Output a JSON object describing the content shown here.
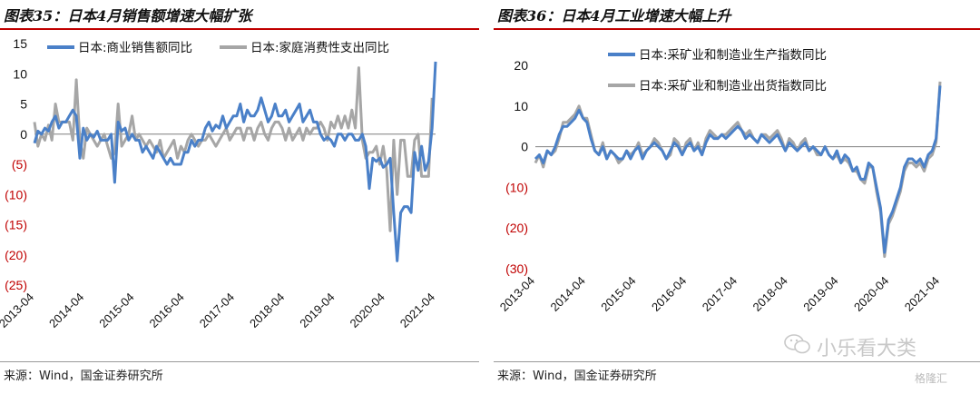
{
  "panels": [
    {
      "title": "图表35：日本4月销售额增速大幅扩张",
      "source": "来源：Wind，国金证券研究所"
    },
    {
      "title": "图表36：日本4月工业增速大幅上升",
      "source": "来源：Wind，国金证券研究所"
    }
  ],
  "watermark": {
    "text": "小乐看大类",
    "brand": "格隆汇"
  },
  "colors": {
    "blue": "#4a80c8",
    "gray": "#a6a6a6",
    "negative": "#c00000",
    "title_rule": "#c00000"
  },
  "chart_data": [
    {
      "type": "line",
      "ylim": [
        -25,
        15
      ],
      "yticks": [
        15,
        10,
        5,
        0,
        -5,
        -10,
        -15,
        -20,
        -25
      ],
      "ytick_labels": [
        "15",
        "10",
        "5",
        "0",
        "(5)",
        "(10)",
        "(15)",
        "(20)",
        "(25)"
      ],
      "xticks": [
        "2013-04",
        "2014-04",
        "2015-04",
        "2016-04",
        "2017-04",
        "2018-04",
        "2019-04",
        "2020-04",
        "2021-04"
      ],
      "x_start": "2013-04",
      "x_end": "2021-04",
      "legend_position": "top",
      "series": [
        {
          "name": "日本:商业销售额同比",
          "color": "blue",
          "values": [
            -1.5,
            0.5,
            0,
            1,
            0.5,
            2,
            3,
            1,
            2,
            2,
            3,
            4,
            3,
            -4,
            1,
            -1,
            0,
            -0.5,
            0.5,
            -1,
            -1,
            -1,
            0,
            -8,
            2,
            0.5,
            1,
            -1,
            0,
            -1,
            -1,
            -3,
            -2,
            -3,
            -4,
            -2,
            -3,
            -4,
            -5,
            -4,
            -5,
            -5,
            -5,
            -3,
            -3,
            -1,
            -2,
            -1,
            -1,
            1,
            2,
            0.5,
            1.5,
            1,
            3,
            1,
            2,
            3,
            3,
            5,
            2,
            4,
            3,
            3,
            4,
            6,
            4,
            2,
            3,
            5,
            3,
            3,
            4,
            2,
            3,
            4,
            5,
            2,
            3,
            4,
            2,
            2,
            0,
            -1,
            -0.5,
            -1,
            -2,
            0,
            0,
            -1,
            0,
            0,
            -1,
            -1,
            0,
            -2,
            -9,
            -4,
            -4.5,
            -4,
            -5.5,
            -5,
            -4,
            -13,
            -21,
            -13,
            -12,
            -12,
            -13,
            -3,
            -6,
            -2,
            -6,
            -4.5,
            1,
            12
          ]
        },
        {
          "name": "日本:家庭消费性支出同比",
          "color": "gray",
          "values": [
            2,
            -2,
            0,
            -1,
            1.5,
            -1,
            5,
            2,
            2,
            2,
            2,
            -1,
            9,
            -1,
            -4,
            1,
            0,
            -1,
            -2,
            -1,
            0,
            -2,
            -4,
            -3,
            5,
            -2,
            -1,
            0,
            3,
            -1,
            0,
            -1,
            -2,
            -1,
            -2,
            -3,
            -1,
            -4,
            -3,
            -2,
            -1,
            -4,
            -2,
            -3,
            -1,
            0,
            -1,
            -2,
            -1,
            -1,
            0,
            -1,
            -2,
            -1,
            0,
            1,
            -1,
            0,
            1,
            1,
            -1,
            1,
            1,
            -1,
            1,
            2,
            0,
            -1,
            1,
            2,
            2,
            1,
            -1,
            1,
            -1,
            0,
            1,
            -1,
            1,
            0,
            1,
            1,
            2,
            1,
            -1,
            2,
            1,
            3,
            1,
            3,
            1,
            4,
            1,
            11,
            -1,
            -4,
            -3,
            -3,
            -2,
            -5,
            -2,
            -6,
            -16,
            -1,
            -10,
            -1,
            -1,
            -7,
            -7,
            -1,
            0,
            -7,
            -7,
            -7,
            6
          ]
        }
      ]
    },
    {
      "type": "line",
      "ylim": [
        -30,
        20
      ],
      "yticks": [
        20,
        10,
        0,
        -10,
        -20,
        -30
      ],
      "ytick_labels": [
        "20",
        "10",
        "0",
        "(10)",
        "(20)",
        "(30)"
      ],
      "xticks": [
        "2013-04",
        "2014-04",
        "2015-04",
        "2016-04",
        "2017-04",
        "2018-04",
        "2019-04",
        "2020-04",
        "2021-04"
      ],
      "x_start": "2013-04",
      "x_end": "2021-04",
      "legend_position": "top",
      "series": [
        {
          "name": "日本:采矿业和制造业生产指数同比",
          "color": "blue",
          "values": [
            -3,
            -2,
            -4,
            -1,
            -2,
            0,
            3,
            5,
            5,
            6,
            7,
            9,
            7,
            6,
            2,
            -1,
            -2,
            0,
            -3,
            -1,
            -2,
            -3,
            -3,
            -1,
            -3,
            -1,
            0,
            -3,
            -1,
            0,
            1,
            0,
            -1,
            -3,
            -1,
            1,
            0,
            -2,
            0,
            1,
            -1,
            0,
            -2,
            1,
            3,
            2,
            2,
            3,
            2,
            3,
            4,
            5,
            4,
            2,
            3,
            2,
            1,
            3,
            2,
            1,
            2,
            3,
            1,
            -1,
            1,
            0,
            -1,
            0,
            1,
            -1,
            0,
            -1,
            -2,
            0,
            -2,
            -3,
            -1,
            -4,
            -2,
            -3,
            -6,
            -5,
            -8,
            -8,
            -4,
            -5,
            -10,
            -15,
            -26,
            -18,
            -16,
            -13,
            -10,
            -5,
            -3,
            -3,
            -4,
            -3,
            -5,
            -2,
            -1,
            2,
            15
          ]
        },
        {
          "name": "日本:采矿业和制造业出货指数同比",
          "color": "gray",
          "values": [
            -4,
            -2,
            -5,
            -1,
            -2,
            -1,
            2,
            6,
            6,
            7,
            8,
            10,
            7,
            7,
            3,
            -1,
            -2,
            1,
            -3,
            -1,
            -2,
            -4,
            -3,
            -1,
            -2,
            -1,
            1,
            -2,
            -1,
            0,
            2,
            1,
            -1,
            -3,
            -2,
            2,
            1,
            -2,
            1,
            2,
            -1,
            1,
            -2,
            2,
            4,
            3,
            2,
            3,
            3,
            4,
            5,
            6,
            4,
            3,
            4,
            2,
            1,
            3,
            3,
            2,
            3,
            4,
            2,
            -1,
            2,
            1,
            -1,
            1,
            2,
            -1,
            0,
            -2,
            -2,
            0,
            -2,
            -3,
            -2,
            -4,
            -3,
            -4,
            -6,
            -6,
            -8,
            -9,
            -5,
            -5,
            -11,
            -16,
            -27,
            -19,
            -17,
            -14,
            -11,
            -6,
            -4,
            -4,
            -5,
            -4,
            -6,
            -3,
            -2,
            1,
            16
          ]
        }
      ]
    }
  ]
}
